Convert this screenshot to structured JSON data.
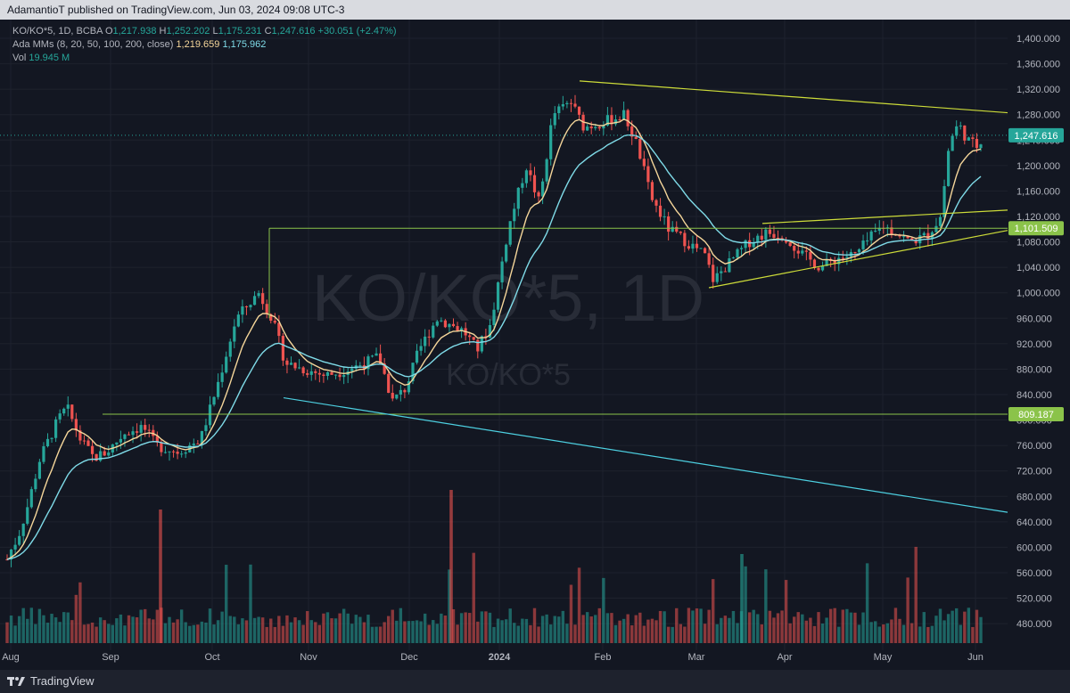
{
  "header": {
    "text": "AdamantioT published on TradingView.com, Jun 03, 2024 09:08 UTC-3"
  },
  "legend": {
    "symbol": "KO/KO*5, 1D, BCBA",
    "open_label": "O",
    "open": "1,217.938",
    "high_label": "H",
    "high": "1,252.202",
    "low_label": "L",
    "low": "1,175.231",
    "close_label": "C",
    "close": "1,247.616",
    "change": "+30.051 (+2.47%)",
    "ma_label": "Ada MMs (8, 20, 50, 100, 200, close)",
    "ma_fast": "1,219.659",
    "ma_slow": "1,175.962",
    "vol_label": "Vol",
    "vol_value": "19.945 M"
  },
  "watermark": {
    "big": "KO/KO*5, 1D",
    "small": "KO/KO*5"
  },
  "footer": {
    "brand": "TradingView"
  },
  "colors": {
    "up": "#26a69a",
    "down": "#ef5350",
    "ma_fast": "#f5d69a",
    "ma_slow": "#7fdbe8",
    "trend": "#cddc39",
    "support": "#8bc34a",
    "channel": "#4dd0e1"
  },
  "chart_data": {
    "type": "candlestick",
    "y_ticks": [
      "1,400.000",
      "1,360.000",
      "1,320.000",
      "1,280.000",
      "1,240.000",
      "1,200.000",
      "1,160.000",
      "1,120.000",
      "1,080.000",
      "1,040.000",
      "1,000.000",
      "960.000",
      "920.000",
      "880.000",
      "840.000",
      "800.000",
      "760.000",
      "720.000",
      "680.000",
      "640.000",
      "600.000",
      "560.000",
      "520.000",
      "480.000"
    ],
    "ylim": [
      458,
      1420
    ],
    "x_ticks": [
      "Aug",
      "Sep",
      "Oct",
      "Nov",
      "Dec",
      "2024",
      "Feb",
      "Mar",
      "Apr",
      "May",
      "Jun"
    ],
    "price_labels": [
      {
        "text": "1,247.616",
        "value": 1247.616,
        "color": "#26a69a"
      },
      {
        "text": "1,101.509",
        "value": 1101.509,
        "color": "#8bc34a"
      },
      {
        "text": "809.187",
        "value": 809.187,
        "color": "#8bc34a"
      }
    ],
    "waypoints": [
      [
        0,
        545
      ],
      [
        10,
        590
      ],
      [
        20,
        615
      ],
      [
        30,
        660
      ],
      [
        45,
        740
      ],
      [
        65,
        800
      ],
      [
        75,
        820
      ],
      [
        90,
        770
      ],
      [
        105,
        740
      ],
      [
        120,
        750
      ],
      [
        140,
        780
      ],
      [
        160,
        790
      ],
      [
        175,
        760
      ],
      [
        200,
        750
      ],
      [
        225,
        770
      ],
      [
        245,
        860
      ],
      [
        265,
        960
      ],
      [
        290,
        1000
      ],
      [
        305,
        960
      ],
      [
        320,
        890
      ],
      [
        340,
        880
      ],
      [
        365,
        870
      ],
      [
        390,
        880
      ],
      [
        410,
        890
      ],
      [
        425,
        900
      ],
      [
        440,
        830
      ],
      [
        455,
        850
      ],
      [
        470,
        910
      ],
      [
        490,
        960
      ],
      [
        505,
        950
      ],
      [
        520,
        940
      ],
      [
        535,
        910
      ],
      [
        550,
        950
      ],
      [
        570,
        1100
      ],
      [
        590,
        1200
      ],
      [
        605,
        1140
      ],
      [
        620,
        1280
      ],
      [
        640,
        1300
      ],
      [
        655,
        1260
      ],
      [
        680,
        1270
      ],
      [
        700,
        1280
      ],
      [
        715,
        1230
      ],
      [
        730,
        1150
      ],
      [
        750,
        1100
      ],
      [
        770,
        1080
      ],
      [
        790,
        1060
      ],
      [
        800,
        1020
      ],
      [
        820,
        1050
      ],
      [
        840,
        1080
      ],
      [
        860,
        1095
      ],
      [
        880,
        1090
      ],
      [
        900,
        1060
      ],
      [
        920,
        1040
      ],
      [
        940,
        1055
      ],
      [
        960,
        1060
      ],
      [
        975,
        1085
      ],
      [
        990,
        1105
      ],
      [
        1005,
        1095
      ],
      [
        1020,
        1080
      ],
      [
        1040,
        1090
      ],
      [
        1055,
        1120
      ],
      [
        1065,
        1240
      ],
      [
        1075,
        1265
      ],
      [
        1085,
        1240
      ],
      [
        1095,
        1230
      ],
      [
        1103,
        1247.616
      ]
    ]
  }
}
